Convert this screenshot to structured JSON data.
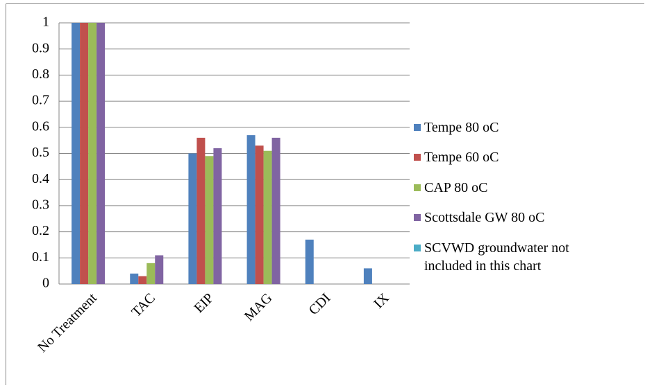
{
  "chart_data": {
    "type": "bar",
    "categories": [
      "No Treatment",
      "TAC",
      "EIP",
      "MAG",
      "CDI",
      "IX"
    ],
    "series": [
      {
        "name": "Tempe 80 oC",
        "color": "#4f81bd",
        "values": [
          1,
          0.04,
          0.5,
          0.57,
          0.17,
          0.06
        ]
      },
      {
        "name": "Tempe 60 oC",
        "color": "#c0504d",
        "values": [
          1,
          0.03,
          0.56,
          0.53,
          0,
          0
        ]
      },
      {
        "name": "CAP 80 oC",
        "color": "#9bbb59",
        "values": [
          1,
          0.08,
          0.49,
          0.51,
          0,
          0
        ]
      },
      {
        "name": "Scottsdale GW 80 oC",
        "color": "#8064a2",
        "values": [
          1,
          0.11,
          0.52,
          0.56,
          0,
          0
        ]
      },
      {
        "name": "SCVWD groundwater not included in this chart",
        "color": "#4bacc6",
        "values": [
          null,
          null,
          null,
          null,
          null,
          null
        ]
      }
    ],
    "ylim": [
      0,
      1
    ],
    "yticks": [
      0,
      0.1,
      0.2,
      0.3,
      0.4,
      0.5,
      0.6,
      0.7,
      0.8,
      0.9,
      1
    ],
    "grid": true,
    "legend": "right"
  }
}
